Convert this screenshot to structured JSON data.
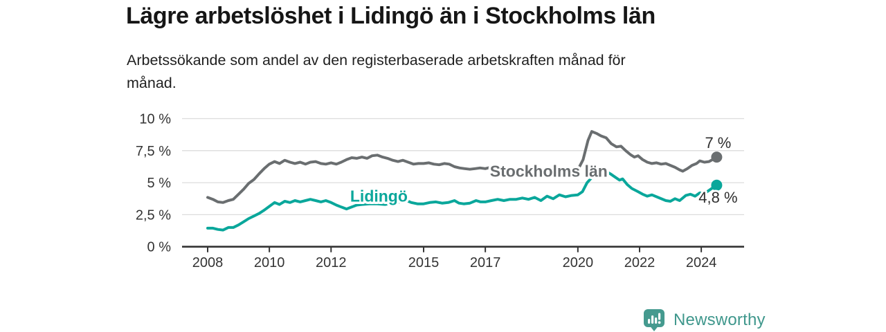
{
  "colors": {
    "background": "#ffffff",
    "title_text": "#161616",
    "subtitle_text": "#1f1f1f",
    "axis": "#333333",
    "grid": "#dcdcdc",
    "value_label_text": "#2e2e2e",
    "stockholm_gray": "#6a6e70",
    "lidingo_teal": "#0aa79b",
    "brand_teal": "#459a8f"
  },
  "footer": {
    "brand": "Newsworthy"
  },
  "chart_data": {
    "type": "line",
    "title": "Lägre arbetslöshet i Lidingö än i Stockholms län",
    "subtitle": "Arbetssökande som andel av den registerbaserade arbetskraften månad för månad.",
    "subtitle_lines": [
      "Arbetssökande som andel av den registerbaserade arbetskraften månad för",
      "månad."
    ],
    "unit": "%",
    "ylim": [
      0,
      10
    ],
    "xlim_years": [
      2008,
      2024.5
    ],
    "grid": "horizontal",
    "legend_position": "inline-labels",
    "y_ticks": [
      {
        "label": "10 %",
        "value": 10
      },
      {
        "label": "7,5 %",
        "value": 7.5
      },
      {
        "label": "5 %",
        "value": 5
      },
      {
        "label": "2,5 %",
        "value": 2.5
      },
      {
        "label": "0 %",
        "value": 0
      }
    ],
    "x_ticks": [
      {
        "label": "2008",
        "value": 2008
      },
      {
        "label": "2010",
        "value": 2010
      },
      {
        "label": "2012",
        "value": 2012
      },
      {
        "label": "2015",
        "value": 2015
      },
      {
        "label": "2017",
        "value": 2017
      },
      {
        "label": "2020",
        "value": 2020
      },
      {
        "label": "2022",
        "value": 2022
      },
      {
        "label": "2024",
        "value": 2024
      }
    ],
    "series": [
      {
        "name": "Stockholms län",
        "slug": "stockholms-lan",
        "color": "#6a6e70",
        "end_label": "7 %",
        "end_label_position": "above",
        "points": [
          [
            2008.0,
            3.85
          ],
          [
            2008.17,
            3.7
          ],
          [
            2008.33,
            3.5
          ],
          [
            2008.5,
            3.45
          ],
          [
            2008.67,
            3.6
          ],
          [
            2008.83,
            3.7
          ],
          [
            2009.0,
            4.1
          ],
          [
            2009.17,
            4.5
          ],
          [
            2009.33,
            4.95
          ],
          [
            2009.5,
            5.25
          ],
          [
            2009.67,
            5.7
          ],
          [
            2009.83,
            6.1
          ],
          [
            2010.0,
            6.45
          ],
          [
            2010.17,
            6.65
          ],
          [
            2010.33,
            6.5
          ],
          [
            2010.5,
            6.75
          ],
          [
            2010.67,
            6.6
          ],
          [
            2010.83,
            6.5
          ],
          [
            2011.0,
            6.6
          ],
          [
            2011.17,
            6.45
          ],
          [
            2011.33,
            6.6
          ],
          [
            2011.5,
            6.65
          ],
          [
            2011.67,
            6.5
          ],
          [
            2011.83,
            6.45
          ],
          [
            2012.0,
            6.55
          ],
          [
            2012.17,
            6.45
          ],
          [
            2012.33,
            6.6
          ],
          [
            2012.5,
            6.8
          ],
          [
            2012.67,
            6.95
          ],
          [
            2012.83,
            6.9
          ],
          [
            2013.0,
            7.0
          ],
          [
            2013.17,
            6.9
          ],
          [
            2013.33,
            7.1
          ],
          [
            2013.5,
            7.15
          ],
          [
            2013.67,
            7.0
          ],
          [
            2013.83,
            6.9
          ],
          [
            2014.0,
            6.75
          ],
          [
            2014.17,
            6.65
          ],
          [
            2014.33,
            6.75
          ],
          [
            2014.5,
            6.6
          ],
          [
            2014.67,
            6.45
          ],
          [
            2014.83,
            6.5
          ],
          [
            2015.0,
            6.5
          ],
          [
            2015.17,
            6.55
          ],
          [
            2015.33,
            6.45
          ],
          [
            2015.5,
            6.4
          ],
          [
            2015.67,
            6.5
          ],
          [
            2015.83,
            6.45
          ],
          [
            2016.0,
            6.25
          ],
          [
            2016.17,
            6.15
          ],
          [
            2016.33,
            6.1
          ],
          [
            2016.5,
            6.05
          ],
          [
            2016.67,
            6.1
          ],
          [
            2016.83,
            6.15
          ],
          [
            2017.0,
            6.1
          ],
          [
            2017.17,
            6.2
          ],
          [
            2017.33,
            6.1
          ],
          [
            2017.5,
            6.0
          ],
          [
            2017.67,
            6.05
          ],
          [
            2017.83,
            6.1
          ],
          [
            2018.0,
            6.05
          ],
          [
            2018.25,
            5.95
          ],
          [
            2018.5,
            6.0
          ],
          [
            2018.75,
            5.9
          ],
          [
            2019.0,
            5.95
          ],
          [
            2019.25,
            6.0
          ],
          [
            2019.5,
            5.9
          ],
          [
            2019.75,
            5.95
          ],
          [
            2020.0,
            6.0
          ],
          [
            2020.17,
            6.8
          ],
          [
            2020.33,
            8.3
          ],
          [
            2020.45,
            9.0
          ],
          [
            2020.6,
            8.85
          ],
          [
            2020.75,
            8.65
          ],
          [
            2020.92,
            8.5
          ],
          [
            2021.08,
            8.05
          ],
          [
            2021.25,
            7.8
          ],
          [
            2021.4,
            7.85
          ],
          [
            2021.55,
            7.5
          ],
          [
            2021.7,
            7.2
          ],
          [
            2021.83,
            7.0
          ],
          [
            2021.95,
            7.1
          ],
          [
            2022.1,
            6.8
          ],
          [
            2022.25,
            6.6
          ],
          [
            2022.4,
            6.5
          ],
          [
            2022.55,
            6.55
          ],
          [
            2022.7,
            6.45
          ],
          [
            2022.85,
            6.5
          ],
          [
            2023.0,
            6.35
          ],
          [
            2023.15,
            6.2
          ],
          [
            2023.3,
            6.0
          ],
          [
            2023.4,
            5.9
          ],
          [
            2023.55,
            6.1
          ],
          [
            2023.7,
            6.35
          ],
          [
            2023.85,
            6.5
          ],
          [
            2023.95,
            6.7
          ],
          [
            2024.1,
            6.6
          ],
          [
            2024.25,
            6.65
          ],
          [
            2024.4,
            6.85
          ],
          [
            2024.5,
            7.0
          ]
        ]
      },
      {
        "name": "Lidingö",
        "slug": "lidingo",
        "color": "#0aa79b",
        "end_label": "4,8 %",
        "end_label_position": "below",
        "points": [
          [
            2008.0,
            1.45
          ],
          [
            2008.17,
            1.45
          ],
          [
            2008.33,
            1.35
          ],
          [
            2008.5,
            1.3
          ],
          [
            2008.67,
            1.5
          ],
          [
            2008.83,
            1.5
          ],
          [
            2009.0,
            1.7
          ],
          [
            2009.17,
            1.95
          ],
          [
            2009.33,
            2.2
          ],
          [
            2009.5,
            2.4
          ],
          [
            2009.67,
            2.6
          ],
          [
            2009.83,
            2.85
          ],
          [
            2010.0,
            3.15
          ],
          [
            2010.17,
            3.45
          ],
          [
            2010.33,
            3.3
          ],
          [
            2010.5,
            3.55
          ],
          [
            2010.67,
            3.45
          ],
          [
            2010.83,
            3.6
          ],
          [
            2011.0,
            3.5
          ],
          [
            2011.17,
            3.6
          ],
          [
            2011.33,
            3.7
          ],
          [
            2011.5,
            3.6
          ],
          [
            2011.67,
            3.5
          ],
          [
            2011.83,
            3.6
          ],
          [
            2012.0,
            3.45
          ],
          [
            2012.17,
            3.25
          ],
          [
            2012.33,
            3.1
          ],
          [
            2012.5,
            2.95
          ],
          [
            2012.67,
            3.1
          ],
          [
            2012.83,
            3.25
          ],
          [
            2013.0,
            3.3
          ],
          [
            2013.25,
            3.35
          ],
          [
            2013.5,
            3.35
          ],
          [
            2013.75,
            3.3
          ],
          [
            2014.0,
            3.4
          ],
          [
            2014.25,
            3.5
          ],
          [
            2014.45,
            3.6
          ],
          [
            2014.6,
            3.45
          ],
          [
            2014.8,
            3.35
          ],
          [
            2015.0,
            3.35
          ],
          [
            2015.2,
            3.45
          ],
          [
            2015.4,
            3.5
          ],
          [
            2015.6,
            3.4
          ],
          [
            2015.8,
            3.45
          ],
          [
            2016.0,
            3.6
          ],
          [
            2016.15,
            3.4
          ],
          [
            2016.3,
            3.35
          ],
          [
            2016.5,
            3.4
          ],
          [
            2016.7,
            3.6
          ],
          [
            2016.85,
            3.5
          ],
          [
            2017.0,
            3.5
          ],
          [
            2017.2,
            3.6
          ],
          [
            2017.4,
            3.7
          ],
          [
            2017.6,
            3.6
          ],
          [
            2017.8,
            3.7
          ],
          [
            2018.0,
            3.7
          ],
          [
            2018.2,
            3.8
          ],
          [
            2018.4,
            3.7
          ],
          [
            2018.6,
            3.85
          ],
          [
            2018.8,
            3.6
          ],
          [
            2019.0,
            3.95
          ],
          [
            2019.2,
            3.75
          ],
          [
            2019.4,
            4.05
          ],
          [
            2019.6,
            3.9
          ],
          [
            2019.8,
            4.0
          ],
          [
            2020.0,
            4.05
          ],
          [
            2020.15,
            4.3
          ],
          [
            2020.3,
            5.0
          ],
          [
            2020.45,
            5.4
          ],
          [
            2020.6,
            5.6
          ],
          [
            2020.75,
            5.8
          ],
          [
            2020.9,
            5.9
          ],
          [
            2021.05,
            5.7
          ],
          [
            2021.2,
            5.45
          ],
          [
            2021.35,
            5.2
          ],
          [
            2021.45,
            5.3
          ],
          [
            2021.6,
            4.85
          ],
          [
            2021.75,
            4.55
          ],
          [
            2021.95,
            4.3
          ],
          [
            2022.1,
            4.1
          ],
          [
            2022.25,
            3.95
          ],
          [
            2022.4,
            4.05
          ],
          [
            2022.6,
            3.85
          ],
          [
            2022.85,
            3.6
          ],
          [
            2023.0,
            3.55
          ],
          [
            2023.15,
            3.75
          ],
          [
            2023.3,
            3.6
          ],
          [
            2023.5,
            4.0
          ],
          [
            2023.65,
            4.1
          ],
          [
            2023.8,
            3.95
          ],
          [
            2023.95,
            4.2
          ],
          [
            2024.1,
            4.15
          ],
          [
            2024.25,
            4.4
          ],
          [
            2024.4,
            4.65
          ],
          [
            2024.5,
            4.8
          ]
        ]
      }
    ],
    "inline_labels": [
      {
        "text": "Stockholms län",
        "series_index": 0,
        "year": 2017.15,
        "pct": 5.9,
        "anchor": "start"
      },
      {
        "text": "Lidingö",
        "series_index": 1,
        "year": 2013.55,
        "pct": 3.95,
        "anchor": "middle"
      }
    ]
  }
}
